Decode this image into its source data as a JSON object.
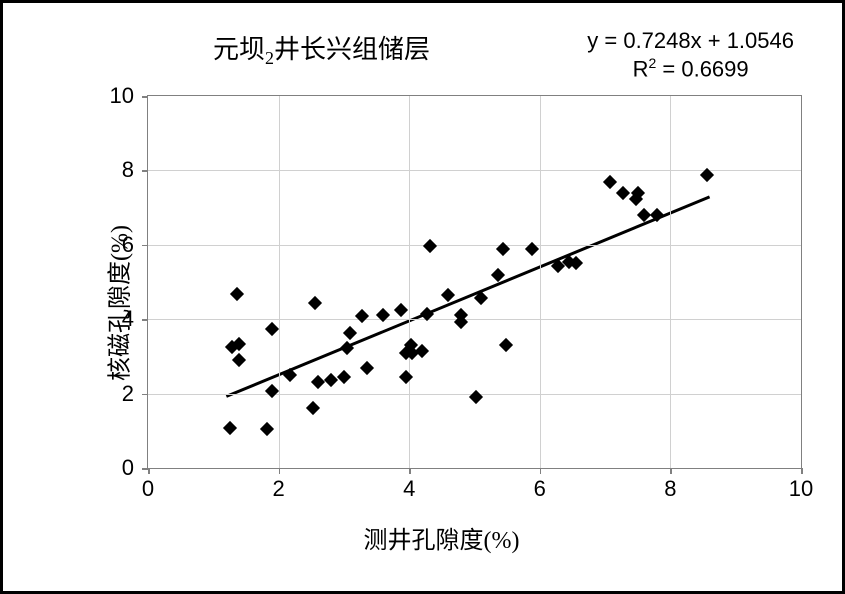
{
  "chart": {
    "type": "scatter",
    "title": "元坝2井长兴组储层",
    "equation_line1": "y = 0.7248x + 1.0546",
    "equation_line2_prefix": "R",
    "equation_line2_sup": "2",
    "equation_line2_rest": " = 0.6699",
    "xlabel": "测井孔隙度(%)",
    "ylabel": "核磁孔隙度(%)",
    "xlim": [
      0,
      10
    ],
    "ylim": [
      0,
      10
    ],
    "xtick_step": 2,
    "ytick_step": 2,
    "xtick_labels": [
      "0",
      "2",
      "4",
      "6",
      "8",
      "10"
    ],
    "ytick_labels": [
      "0",
      "2",
      "4",
      "6",
      "8",
      "10"
    ],
    "grid": true,
    "grid_color": "#d0d0d0",
    "background_color": "#ffffff",
    "axis_color": "#808080",
    "marker_color": "#000000",
    "marker_shape": "diamond",
    "marker_size": 10,
    "trend_color": "#000000",
    "trend_width": 3,
    "trend_slope": 0.7248,
    "trend_intercept": 1.0546,
    "trend_x_start": 1.2,
    "trend_x_end": 8.6,
    "title_fontsize": 26,
    "equation_fontsize": 22,
    "label_fontsize": 24,
    "tick_fontsize": 22,
    "points": [
      [
        1.25,
        1.08
      ],
      [
        1.28,
        3.25
      ],
      [
        1.36,
        4.68
      ],
      [
        1.4,
        3.32
      ],
      [
        1.4,
        2.9
      ],
      [
        1.82,
        1.04
      ],
      [
        1.9,
        3.74
      ],
      [
        1.9,
        2.06
      ],
      [
        2.18,
        2.5
      ],
      [
        2.52,
        1.6
      ],
      [
        2.56,
        4.44
      ],
      [
        2.6,
        2.32
      ],
      [
        2.8,
        2.36
      ],
      [
        3.0,
        2.44
      ],
      [
        3.05,
        3.22
      ],
      [
        3.1,
        3.62
      ],
      [
        3.28,
        4.08
      ],
      [
        3.35,
        2.7
      ],
      [
        3.6,
        4.1
      ],
      [
        3.88,
        4.24
      ],
      [
        3.95,
        2.44
      ],
      [
        3.95,
        3.1
      ],
      [
        4.02,
        3.3
      ],
      [
        4.05,
        3.1
      ],
      [
        4.2,
        3.14
      ],
      [
        4.28,
        4.14
      ],
      [
        4.32,
        5.96
      ],
      [
        4.6,
        4.66
      ],
      [
        4.8,
        4.1
      ],
      [
        4.8,
        3.92
      ],
      [
        5.02,
        1.9
      ],
      [
        5.1,
        4.56
      ],
      [
        5.36,
        5.2
      ],
      [
        5.44,
        5.88
      ],
      [
        5.48,
        3.3
      ],
      [
        5.88,
        5.88
      ],
      [
        6.28,
        5.42
      ],
      [
        6.44,
        5.54
      ],
      [
        6.56,
        5.5
      ],
      [
        7.08,
        7.7
      ],
      [
        7.28,
        7.38
      ],
      [
        7.48,
        7.24
      ],
      [
        7.5,
        7.38
      ],
      [
        7.6,
        6.8
      ],
      [
        7.8,
        6.8
      ],
      [
        8.56,
        7.88
      ]
    ]
  }
}
